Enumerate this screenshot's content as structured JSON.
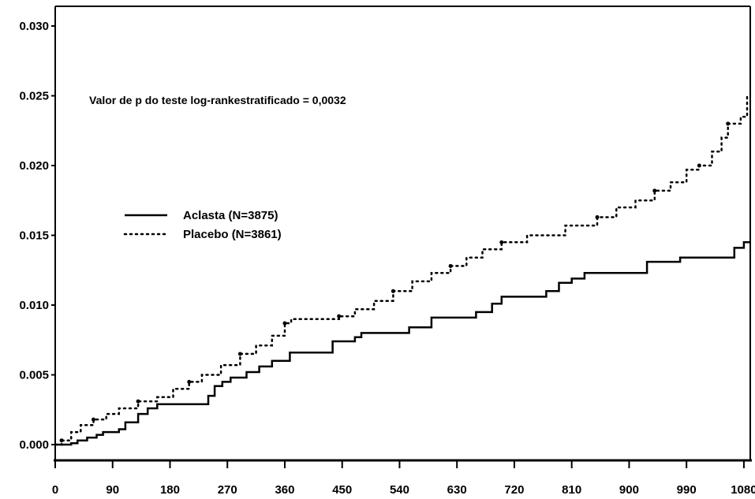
{
  "chart_data": {
    "type": "line",
    "title": "",
    "xlabel": "",
    "ylabel": "",
    "xlim": [
      0,
      1090
    ],
    "ylim": [
      0,
      0.03
    ],
    "x_ticks": [
      0,
      90,
      180,
      270,
      360,
      450,
      540,
      630,
      720,
      810,
      900,
      990,
      1080
    ],
    "x_tick_labels": [
      "0",
      "90",
      "180",
      "270",
      "360",
      "450",
      "540",
      "630",
      "720",
      "810",
      "900",
      "990",
      "1080"
    ],
    "y_ticks": [
      0,
      0.005,
      0.01,
      0.015,
      0.02,
      0.025,
      0.03
    ],
    "y_tick_labels": [
      "0.000",
      "0.005",
      "0.010",
      "0.015",
      "0.020",
      "0.025",
      "0.030"
    ],
    "grid": false,
    "legend_position": "middle-left",
    "annotation": "Valor de p do teste log-rankestratificado = 0,0032",
    "series": [
      {
        "name": "Aclasta (N=3875)",
        "style": "solid",
        "color": "#000000",
        "points": [
          [
            0,
            0
          ],
          [
            10,
            0
          ],
          [
            25,
            0.0001
          ],
          [
            35,
            0.0003
          ],
          [
            50,
            0.0005
          ],
          [
            65,
            0.0007
          ],
          [
            75,
            0.0009
          ],
          [
            100,
            0.0011
          ],
          [
            110,
            0.0016
          ],
          [
            130,
            0.0022
          ],
          [
            145,
            0.0026
          ],
          [
            160,
            0.0029
          ],
          [
            230,
            0.0029
          ],
          [
            240,
            0.0035
          ],
          [
            250,
            0.0042
          ],
          [
            262,
            0.0045
          ],
          [
            275,
            0.0048
          ],
          [
            300,
            0.0052
          ],
          [
            320,
            0.0056
          ],
          [
            340,
            0.006
          ],
          [
            368,
            0.0066
          ],
          [
            425,
            0.0066
          ],
          [
            435,
            0.0074
          ],
          [
            470,
            0.0077
          ],
          [
            480,
            0.008
          ],
          [
            540,
            0.008
          ],
          [
            555,
            0.0084
          ],
          [
            580,
            0.0084
          ],
          [
            590,
            0.0091
          ],
          [
            630,
            0.0091
          ],
          [
            660,
            0.0095
          ],
          [
            685,
            0.0101
          ],
          [
            700,
            0.0106
          ],
          [
            760,
            0.0106
          ],
          [
            770,
            0.011
          ],
          [
            790,
            0.0116
          ],
          [
            810,
            0.0119
          ],
          [
            830,
            0.0123
          ],
          [
            920,
            0.0123
          ],
          [
            928,
            0.0131
          ],
          [
            980,
            0.0134
          ],
          [
            1045,
            0.0134
          ],
          [
            1065,
            0.0141
          ],
          [
            1080,
            0.0145
          ],
          [
            1090,
            0.0145
          ]
        ]
      },
      {
        "name": "Placebo (N=3861)",
        "style": "dotted",
        "color": "#000000",
        "points": [
          [
            0,
            0
          ],
          [
            10,
            0.0003
          ],
          [
            25,
            0.0009
          ],
          [
            40,
            0.0014
          ],
          [
            60,
            0.0018
          ],
          [
            80,
            0.0022
          ],
          [
            100,
            0.0026
          ],
          [
            130,
            0.0031
          ],
          [
            160,
            0.0034
          ],
          [
            185,
            0.004
          ],
          [
            210,
            0.0045
          ],
          [
            230,
            0.005
          ],
          [
            260,
            0.0057
          ],
          [
            290,
            0.0065
          ],
          [
            315,
            0.0071
          ],
          [
            340,
            0.0078
          ],
          [
            360,
            0.0087
          ],
          [
            370,
            0.009
          ],
          [
            430,
            0.009
          ],
          [
            445,
            0.0092
          ],
          [
            470,
            0.0097
          ],
          [
            500,
            0.0103
          ],
          [
            530,
            0.011
          ],
          [
            560,
            0.0117
          ],
          [
            590,
            0.0123
          ],
          [
            620,
            0.0128
          ],
          [
            645,
            0.0134
          ],
          [
            670,
            0.014
          ],
          [
            700,
            0.0145
          ],
          [
            740,
            0.015
          ],
          [
            800,
            0.0157
          ],
          [
            850,
            0.0163
          ],
          [
            880,
            0.017
          ],
          [
            910,
            0.0175
          ],
          [
            940,
            0.0182
          ],
          [
            965,
            0.0188
          ],
          [
            990,
            0.0197
          ],
          [
            1010,
            0.02
          ],
          [
            1030,
            0.021
          ],
          [
            1045,
            0.022
          ],
          [
            1055,
            0.023
          ],
          [
            1075,
            0.0235
          ],
          [
            1085,
            0.025
          ]
        ]
      }
    ]
  }
}
